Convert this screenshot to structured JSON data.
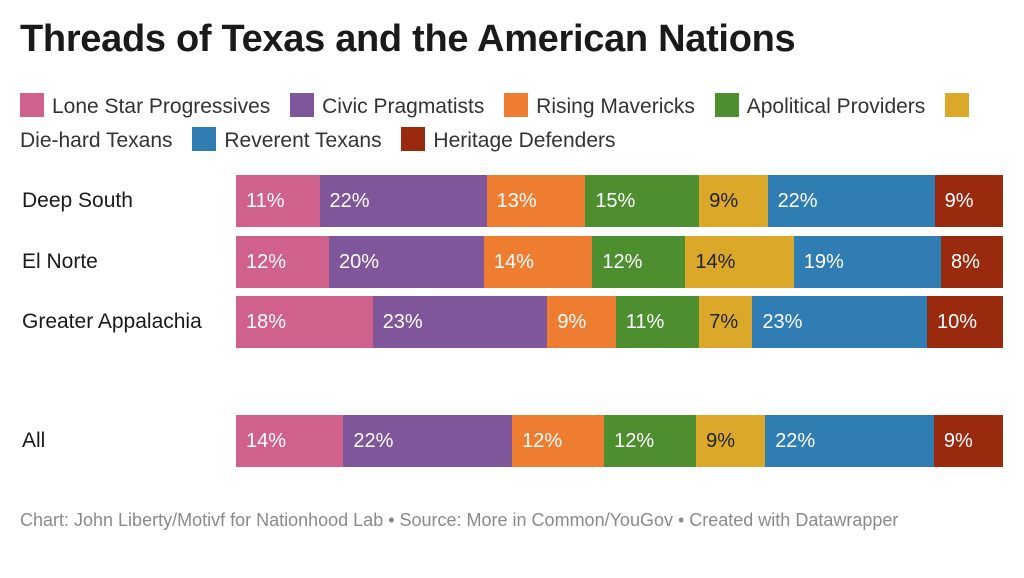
{
  "chart_data": {
    "type": "bar",
    "orientation": "horizontal",
    "stacked": true,
    "title": "Threads of Texas and the American Nations",
    "categories": [
      "Deep South",
      "El Norte",
      "Greater Appalachia",
      "All"
    ],
    "series": [
      {
        "name": "Lone Star Progressives",
        "color": "#d0618c",
        "values": [
          11,
          12,
          18,
          14
        ],
        "labels": [
          "11%",
          "12%",
          "18%",
          "14%"
        ]
      },
      {
        "name": "Civic Pragmatists",
        "color": "#7e5699",
        "values": [
          22,
          20,
          23,
          22
        ],
        "labels": [
          "22%",
          "20%",
          "23%",
          "22%"
        ]
      },
      {
        "name": "Rising Mavericks",
        "color": "#ef7d31",
        "values": [
          13,
          14,
          9,
          12
        ],
        "labels": [
          "13%",
          "14%",
          "9%",
          "12%"
        ]
      },
      {
        "name": "Apolitical Providers",
        "color": "#4d8f2e",
        "values": [
          15,
          12,
          11,
          12
        ],
        "labels": [
          "15%",
          "12%",
          "11%",
          "12%"
        ]
      },
      {
        "name": "Die-hard Texans",
        "color": "#dca82a",
        "values": [
          9,
          14,
          7,
          9
        ],
        "labels": [
          "9%",
          "14%",
          "7%",
          "9%"
        ]
      },
      {
        "name": "Reverent Texans",
        "color": "#2f7db3",
        "values": [
          22,
          19,
          23,
          22
        ],
        "labels": [
          "22%",
          "19%",
          "23%",
          "22%"
        ]
      },
      {
        "name": "Heritage Defenders",
        "color": "#9a2a0e",
        "values": [
          9,
          8,
          10,
          9
        ],
        "labels": [
          "9%",
          "8%",
          "10%",
          "9%"
        ]
      }
    ],
    "xlim": [
      0,
      100
    ],
    "legend": "top",
    "grid": false
  },
  "footer": "Chart: John Liberty/Motivf for Nationhood Lab • Source: More in Common/YouGov • Created with Datawrapper"
}
